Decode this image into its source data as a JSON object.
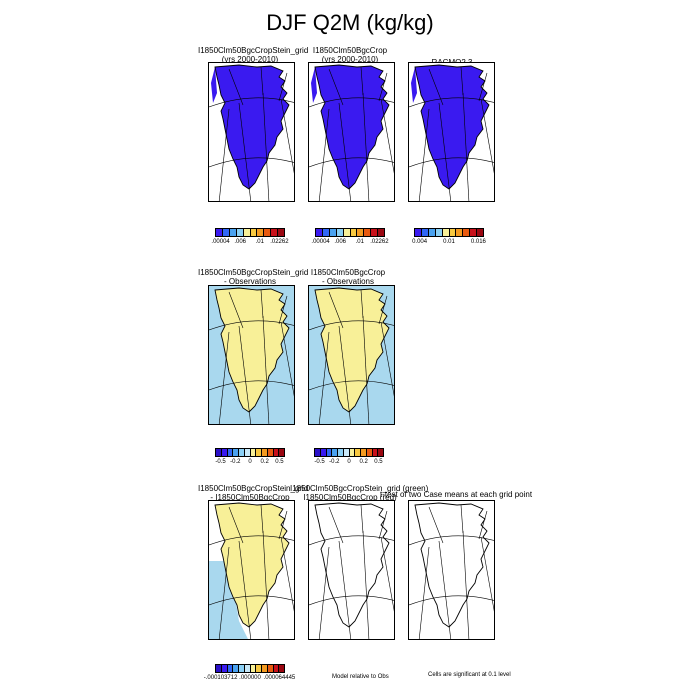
{
  "title": "DJF Q2M (kg/kg)",
  "colors": {
    "blue_field": "#3a1af0",
    "yellow_field": "#f8f098",
    "lightblue_field": "#a9d8ee",
    "coast": "#000000"
  },
  "row1": {
    "panels": [
      {
        "title_line1": "I1850Clm50BgcCropStein_grid",
        "title_line2": "(yrs 2000-2010)"
      },
      {
        "title_line1": "I1850Clm50BgcCrop",
        "title_line2": "(yrs 2000-2010)"
      },
      {
        "title_line1": "RACMO2.3",
        "title_line2": ""
      }
    ],
    "colorbars": [
      {
        "colors": [
          "#3a1af0",
          "#2f66f5",
          "#4aa2f0",
          "#8bd0f5",
          "#f8f098",
          "#f7c840",
          "#f39a20",
          "#e85a10",
          "#c8101a",
          "#9a0610"
        ],
        "ticks": [
          ".00004",
          ".006",
          ".01",
          ".02262"
        ]
      },
      {
        "colors": [
          "#3a1af0",
          "#2f66f5",
          "#4aa2f0",
          "#8bd0f5",
          "#f8f098",
          "#f7c840",
          "#f39a20",
          "#e85a10",
          "#c8101a",
          "#9a0610"
        ],
        "ticks": [
          ".00004",
          ".006",
          ".01",
          ".02262"
        ]
      },
      {
        "colors": [
          "#3a1af0",
          "#2f66f5",
          "#4aa2f0",
          "#8bd0f5",
          "#f8f098",
          "#f7c840",
          "#f39a20",
          "#e85a10",
          "#c8101a",
          "#9a0610"
        ],
        "ticks": [
          "0.004",
          "0.01",
          "0.016"
        ]
      }
    ]
  },
  "row2": {
    "panels": [
      {
        "title_line1": "I1850Clm50BgcCropStein_grid",
        "title_line2": "- Observations"
      },
      {
        "title_line1": "I1850Clm50BgcCrop",
        "title_line2": "- Observations"
      }
    ],
    "colorbars": [
      {
        "colors": [
          "#2a10c8",
          "#3a1af0",
          "#2f66f5",
          "#4aa2f0",
          "#8bd0f5",
          "#c8e8f8",
          "#f8f098",
          "#f7c840",
          "#f39a20",
          "#e85a10",
          "#c8101a",
          "#9a0610"
        ],
        "ticks": [
          "-0.5",
          "-0.2",
          "0",
          "0.2",
          "0.5"
        ]
      },
      {
        "colors": [
          "#2a10c8",
          "#3a1af0",
          "#2f66f5",
          "#4aa2f0",
          "#8bd0f5",
          "#c8e8f8",
          "#f8f098",
          "#f7c840",
          "#f39a20",
          "#e85a10",
          "#c8101a",
          "#9a0610"
        ],
        "ticks": [
          "-0.5",
          "-0.2",
          "0",
          "0.2",
          "0.5"
        ]
      }
    ]
  },
  "row3": {
    "panels": [
      {
        "title_line1": "I1850Clm50BgcCropStein_grid",
        "title_line2": "- I1850Clm50BgcCrop"
      },
      {
        "title_line1": "I1850Clm50BgcCropStein_grid (green)",
        "title_line2": "I1850Clm50BgcCrop (red)"
      },
      {
        "title_line1": "t-test of two Case means at each grid point",
        "title_line2": ""
      }
    ],
    "colorbar": {
      "colors": [
        "#2a10c8",
        "#3a1af0",
        "#2f66f5",
        "#4aa2f0",
        "#8bd0f5",
        "#c8e8f8",
        "#f8f098",
        "#f7c840",
        "#f39a20",
        "#e85a10",
        "#c8101a",
        "#9a0610"
      ],
      "ticks": [
        "-.000103712",
        ".000000",
        ".000064445"
      ]
    },
    "note_middle": "Model relative to Obs",
    "note_right": "Cells are significant at 0.1 level"
  }
}
